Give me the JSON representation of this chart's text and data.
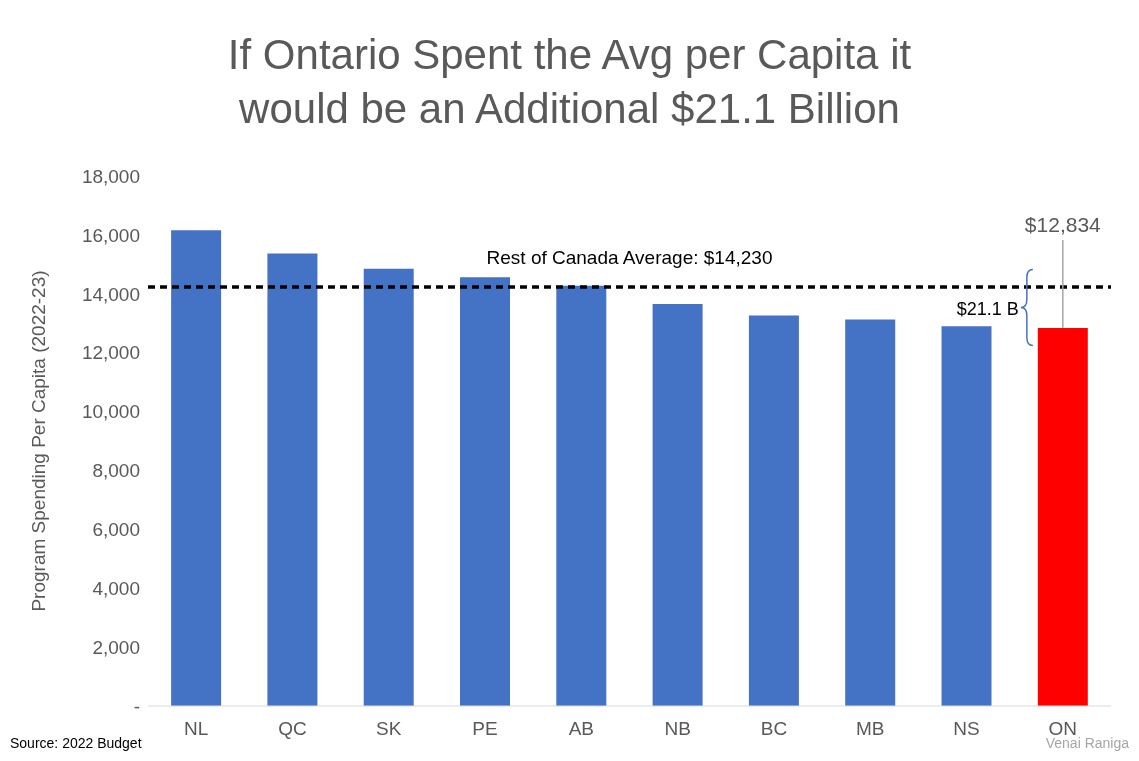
{
  "chart_data": {
    "type": "bar",
    "title": "If Ontario Spent the Avg per Capita it would be an Additional $21.1 Billion",
    "ylabel": "Program Spending Per Capita (2022-23)",
    "categories": [
      "NL",
      "QC",
      "SK",
      "PE",
      "AB",
      "NB",
      "BC",
      "MB",
      "NS",
      "ON"
    ],
    "values": [
      16160,
      15370,
      14850,
      14560,
      14270,
      13650,
      13260,
      13130,
      12900,
      12834
    ],
    "colors": [
      "#4472c4",
      "#4472c4",
      "#4472c4",
      "#4472c4",
      "#4472c4",
      "#4472c4",
      "#4472c4",
      "#4472c4",
      "#4472c4",
      "#ff0000"
    ],
    "value_labels": [
      null,
      null,
      null,
      null,
      null,
      null,
      null,
      null,
      null,
      "$12,834"
    ],
    "ylim": [
      0,
      18000
    ],
    "yticks": [
      {
        "value": 0,
        "label": "-"
      },
      {
        "value": 2000,
        "label": "2,000"
      },
      {
        "value": 4000,
        "label": "4,000"
      },
      {
        "value": 6000,
        "label": "6,000"
      },
      {
        "value": 8000,
        "label": "8,000"
      },
      {
        "value": 10000,
        "label": "10,000"
      },
      {
        "value": 12000,
        "label": "12,000"
      },
      {
        "value": 14000,
        "label": "14,000"
      },
      {
        "value": 16000,
        "label": "16,000"
      },
      {
        "value": 18000,
        "label": "18,000"
      }
    ],
    "grid": false,
    "legend": false,
    "ref_lines": [
      {
        "axis": "y",
        "value": 14230,
        "label": "Rest of Canada Average: $14,230",
        "color": "#000000",
        "line_style": "dashed"
      }
    ],
    "annotations": [
      "$21.1 B",
      "Source: 2022 Budget",
      "Venai Raniga"
    ]
  }
}
